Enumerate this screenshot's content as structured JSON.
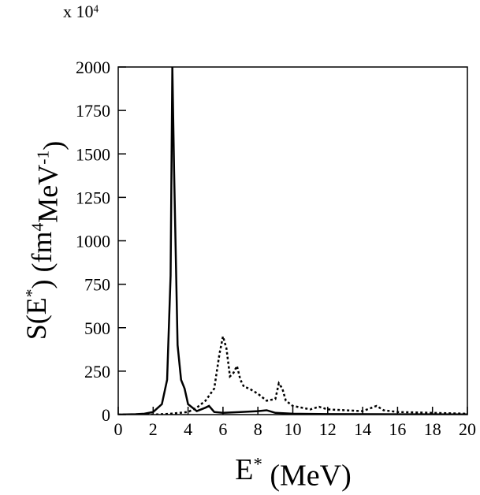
{
  "chart_data": {
    "type": "line",
    "multiplier": [
      {
        "text": "x 10",
        "sup": false
      },
      {
        "text": "4",
        "sup": true
      }
    ],
    "x_label": [
      {
        "text": "E",
        "sup": false
      },
      {
        "text": "*",
        "sup": true
      },
      {
        "text": " (MeV)",
        "sup": false
      }
    ],
    "y_label": [
      {
        "text": "S(E",
        "sup": false
      },
      {
        "text": "*",
        "sup": true
      },
      {
        "text": ") (fm",
        "sup": false
      },
      {
        "text": "4",
        "sup": true
      },
      {
        "text": "MeV",
        "sup": false
      },
      {
        "text": "-1",
        "sup": true
      },
      {
        "text": ")",
        "sup": false
      }
    ],
    "xlim": [
      0,
      20
    ],
    "xticks": [
      0,
      2,
      4,
      6,
      8,
      10,
      12,
      14,
      16,
      18,
      20
    ],
    "ylim": [
      0,
      2000
    ],
    "yticks": [
      0,
      250,
      500,
      750,
      1000,
      1250,
      1500,
      1750,
      2000
    ],
    "series": [
      {
        "color": "#000000",
        "dash": "solid",
        "x": [
          0,
          1,
          1.5,
          2,
          2.5,
          2.8,
          3.0,
          3.1,
          3.2,
          3.4,
          3.6,
          3.8,
          4.0,
          4.5,
          5.0,
          5.2,
          5.5,
          6,
          7,
          8,
          8.5,
          9,
          10,
          12,
          15,
          20
        ],
        "values": [
          0,
          2,
          5,
          15,
          60,
          200,
          800,
          2000,
          1400,
          400,
          200,
          150,
          60,
          20,
          40,
          50,
          15,
          10,
          15,
          20,
          25,
          10,
          5,
          3,
          2,
          1
        ]
      },
      {
        "color": "#000000",
        "dash": "dotted",
        "x": [
          0,
          2,
          3,
          4,
          4.5,
          5,
          5.5,
          5.8,
          6.0,
          6.2,
          6.4,
          6.6,
          6.8,
          7.0,
          7.2,
          7.5,
          8,
          8.5,
          9.0,
          9.2,
          9.4,
          9.6,
          10,
          11,
          11.5,
          12,
          13,
          14,
          14.8,
          15.2,
          16,
          18,
          20
        ],
        "values": [
          0,
          0,
          5,
          15,
          40,
          80,
          150,
          350,
          450,
          380,
          220,
          240,
          280,
          200,
          160,
          150,
          120,
          80,
          90,
          180,
          150,
          80,
          50,
          30,
          45,
          30,
          25,
          20,
          50,
          25,
          15,
          10,
          5
        ]
      }
    ]
  }
}
